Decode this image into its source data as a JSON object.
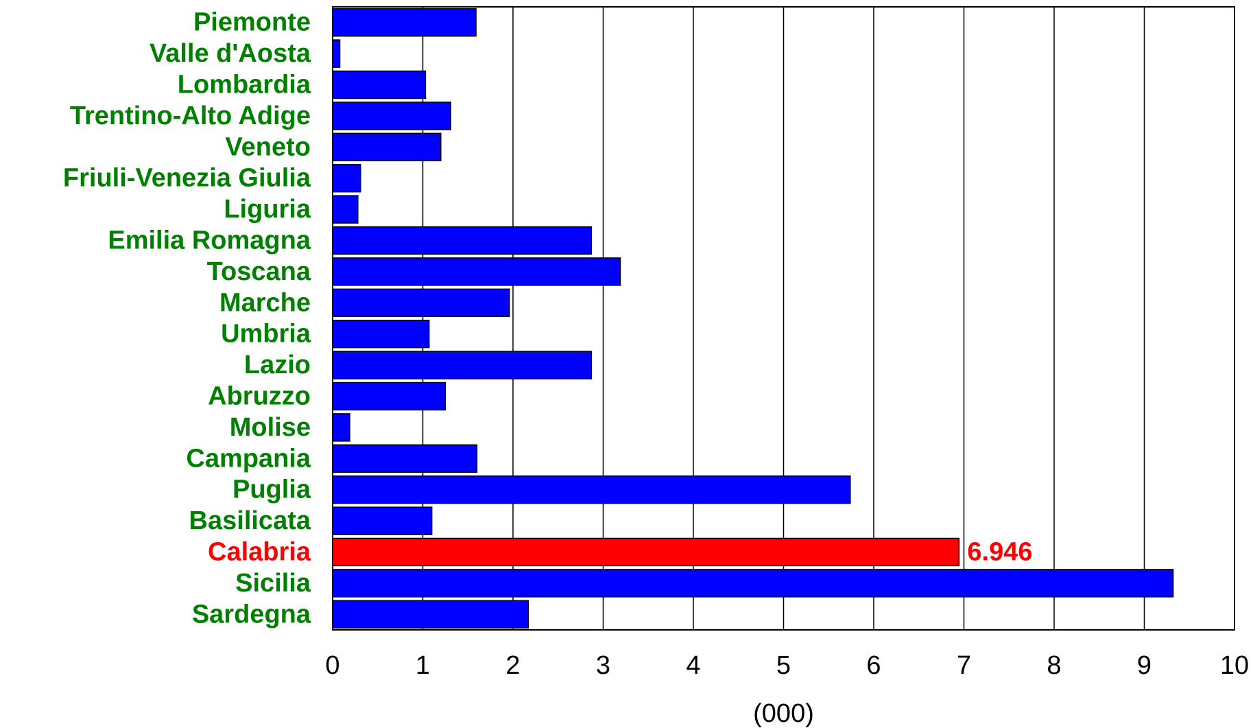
{
  "chart_data": {
    "type": "bar",
    "orientation": "horizontal",
    "categories": [
      "Piemonte",
      "Valle d'Aosta",
      "Lombardia",
      "Trentino-Alto Adige",
      "Veneto",
      "Friuli-Venezia Giulia",
      "Liguria",
      "Emilia Romagna",
      "Toscana",
      "Marche",
      "Umbria",
      "Lazio",
      "Abruzzo",
      "Molise",
      "Campania",
      "Puglia",
      "Basilicata",
      "Calabria",
      "Sicilia",
      "Sardegna"
    ],
    "values": [
      1.59,
      0.08,
      1.03,
      1.31,
      1.2,
      0.31,
      0.28,
      2.87,
      3.19,
      1.96,
      1.07,
      2.87,
      1.25,
      0.19,
      1.6,
      5.74,
      1.1,
      6.946,
      9.32,
      2.17
    ],
    "highlight_category": "Calabria",
    "highlight_label": "6.946",
    "xlabel": "(000)",
    "xlim": [
      0,
      10
    ],
    "xticks": [
      "0",
      "1",
      "2",
      "3",
      "4",
      "5",
      "6",
      "7",
      "8",
      "9",
      "10"
    ],
    "grid": "vertical",
    "colors": {
      "bar": "#0000ff",
      "highlight_bar": "#ff0000",
      "label": "#008000",
      "highlight_label": "#ff0000",
      "grid": "#000000"
    }
  }
}
